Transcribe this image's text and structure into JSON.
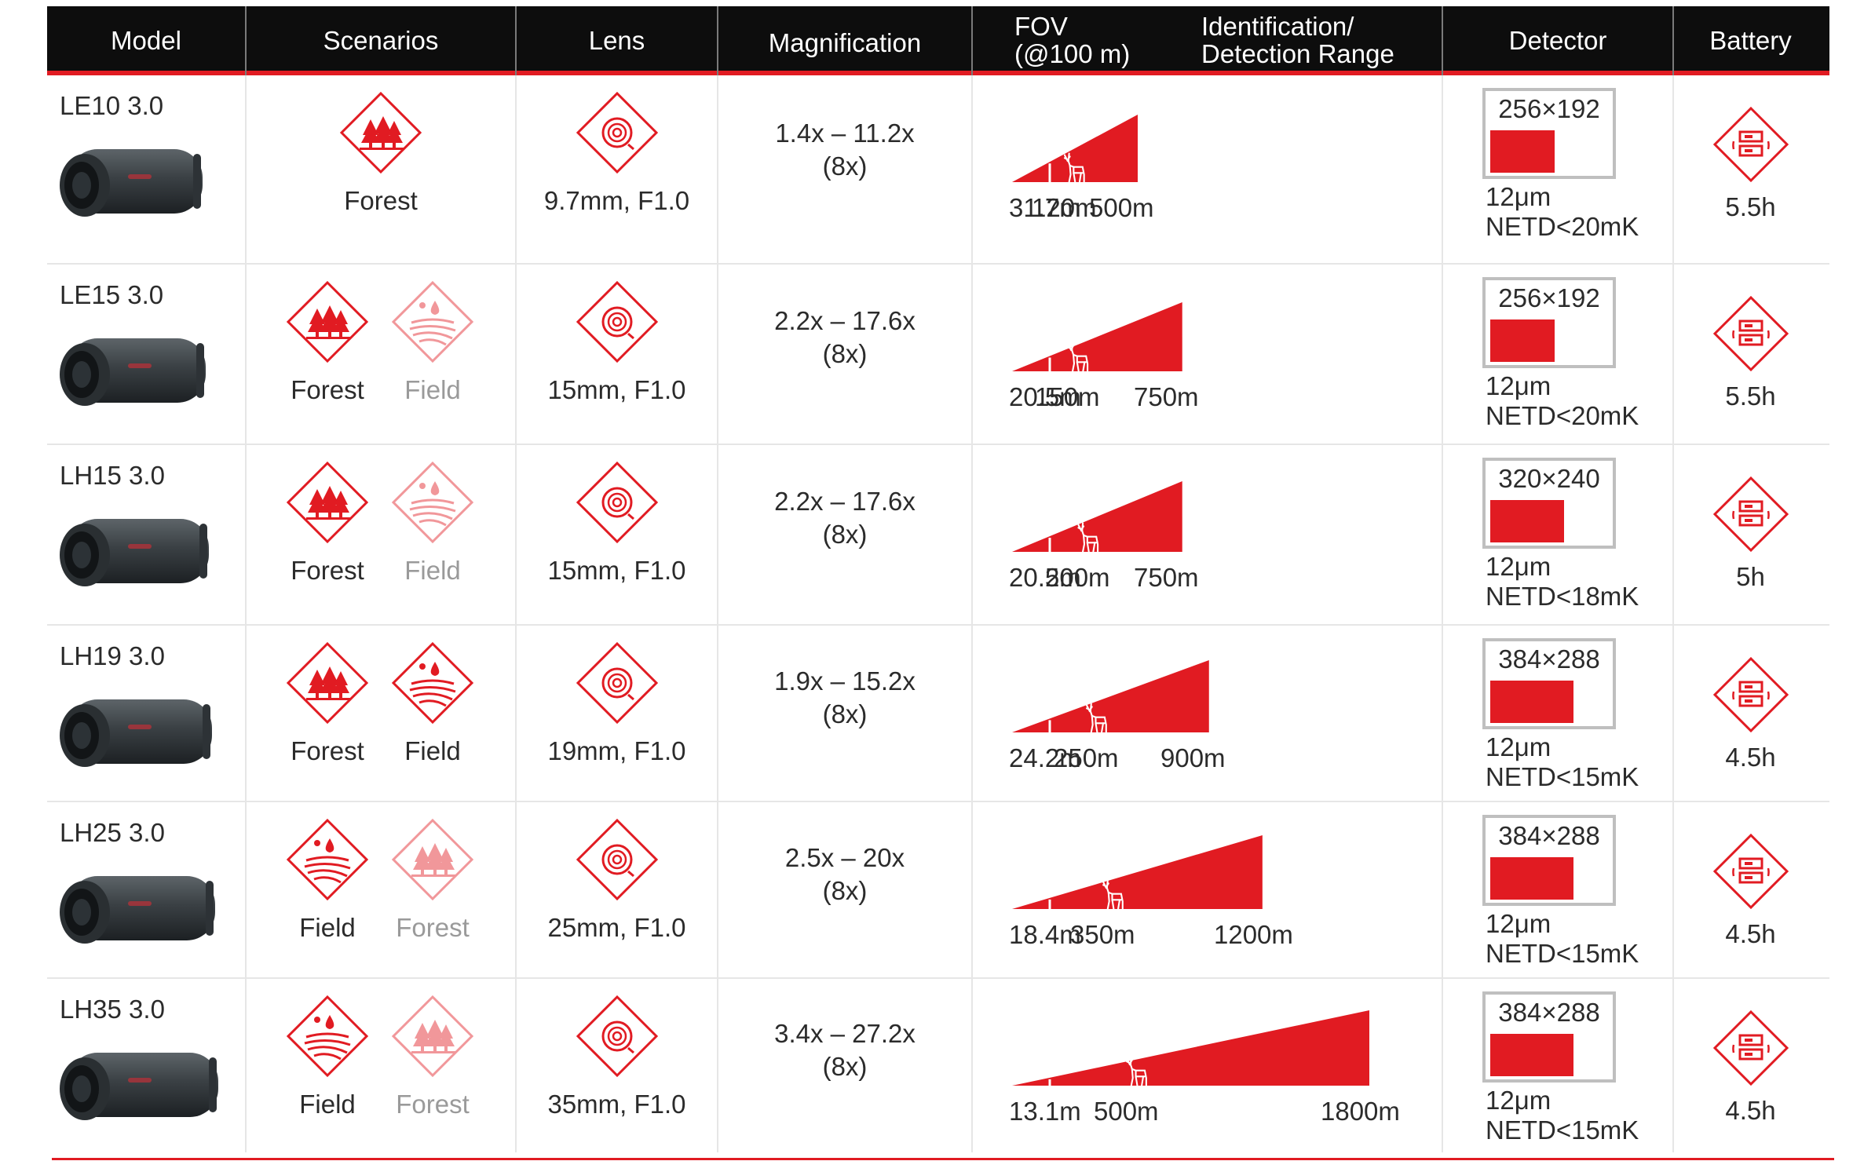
{
  "headers": {
    "model": "Model",
    "scenarios": "Scenarios",
    "lens": "Lens",
    "magnification": "Magnification",
    "fov_line1": "FOV",
    "fov_line2": "(@100 m)",
    "range_line1": "Identification/",
    "range_line2": "Detection Range",
    "detector": "Detector",
    "battery": "Battery"
  },
  "colors": {
    "accent": "#e11b22",
    "header_bg": "#0d0d0d",
    "grid": "#e6e6e6",
    "box_border": "#bfbfbf"
  },
  "rows": [
    {
      "model": "LE10 3.0",
      "scenarios": [
        {
          "label": "Forest",
          "icon": "forest-icon",
          "faded": false
        }
      ],
      "lens": "9.7mm, F1.0",
      "mag_line1": "1.4x – 11.2x",
      "mag_line2": "(8x)",
      "fov": "31.7m",
      "identification": "120m",
      "detection": "500m",
      "detector_res": "256×192",
      "pixel_pitch": "12μm",
      "netd": "NETD<20mK",
      "battery": "5.5h"
    },
    {
      "model": "LE15 3.0",
      "scenarios": [
        {
          "label": "Forest",
          "icon": "forest-icon",
          "faded": false
        },
        {
          "label": "Field",
          "icon": "field-icon",
          "faded": true
        }
      ],
      "lens": "15mm, F1.0",
      "mag_line1": "2.2x – 17.6x",
      "mag_line2": "(8x)",
      "fov": "20.5m",
      "identification": "150m",
      "detection": "750m",
      "detector_res": "256×192",
      "pixel_pitch": "12μm",
      "netd": "NETD<20mK",
      "battery": "5.5h"
    },
    {
      "model": "LH15 3.0",
      "scenarios": [
        {
          "label": "Forest",
          "icon": "forest-icon",
          "faded": false
        },
        {
          "label": "Field",
          "icon": "field-icon",
          "faded": true
        }
      ],
      "lens": "15mm, F1.0",
      "mag_line1": "2.2x – 17.6x",
      "mag_line2": "(8x)",
      "fov": "20.5m",
      "identification": "200m",
      "detection": "750m",
      "detector_res": "320×240",
      "pixel_pitch": "12μm",
      "netd": "NETD<18mK",
      "battery": "5h"
    },
    {
      "model": "LH19 3.0",
      "scenarios": [
        {
          "label": "Forest",
          "icon": "forest-icon",
          "faded": false
        },
        {
          "label": "Field",
          "icon": "field-icon",
          "faded": false
        }
      ],
      "lens": "19mm, F1.0",
      "mag_line1": "1.9x – 15.2x",
      "mag_line2": "(8x)",
      "fov": "24.2m",
      "identification": "250m",
      "detection": "900m",
      "detector_res": "384×288",
      "pixel_pitch": "12μm",
      "netd": "NETD<15mK",
      "battery": "4.5h"
    },
    {
      "model": "LH25 3.0",
      "scenarios": [
        {
          "label": "Field",
          "icon": "field-icon",
          "faded": false
        },
        {
          "label": "Forest",
          "icon": "forest-icon",
          "faded": true
        }
      ],
      "lens": "25mm, F1.0",
      "mag_line1": "2.5x – 20x",
      "mag_line2": "(8x)",
      "fov": "18.4m",
      "identification": "350m",
      "detection": "1200m",
      "detector_res": "384×288",
      "pixel_pitch": "12μm",
      "netd": "NETD<15mK",
      "battery": "4.5h"
    },
    {
      "model": "LH35 3.0",
      "scenarios": [
        {
          "label": "Field",
          "icon": "field-icon",
          "faded": false
        },
        {
          "label": "Forest",
          "icon": "forest-icon",
          "faded": true
        }
      ],
      "lens": "35mm, F1.0",
      "mag_line1": "3.4x – 27.2x",
      "mag_line2": "(8x)",
      "fov": "13.1m",
      "identification": "500m",
      "detection": "1800m",
      "detector_res": "384×288",
      "pixel_pitch": "12μm",
      "netd": "NETD<15mK",
      "battery": "4.5h"
    }
  ]
}
